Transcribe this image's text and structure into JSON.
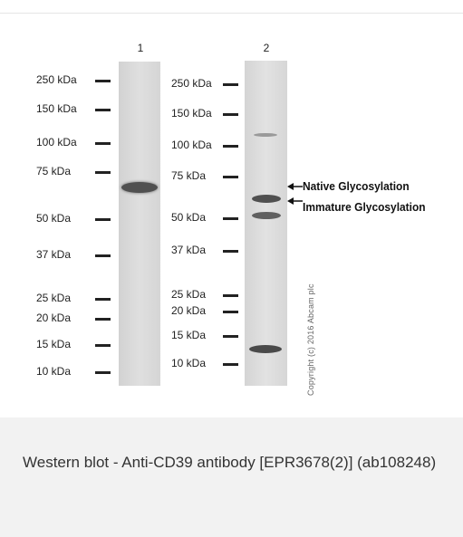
{
  "lanes": {
    "lane1": "1",
    "lane2": "2"
  },
  "markers_left": [
    "250 kDa",
    "150 kDa",
    "100 kDa",
    "75 kDa",
    "50 kDa",
    "37 kDa",
    "25 kDa",
    "20 kDa",
    "15 kDa",
    "10 kDa"
  ],
  "markers_right": [
    "250 kDa",
    "150 kDa",
    "100 kDa",
    "75 kDa",
    "50 kDa",
    "37 kDa",
    "25 kDa",
    "20 kDa",
    "15 kDa",
    "10 kDa"
  ],
  "annotations": {
    "native": "Native Glycosylation",
    "immature": "Immature Glycosylation"
  },
  "copyright": "Copyright (c) 2016 Abcam plc",
  "caption": "Western blot - Anti-CD39 antibody [EPR3678(2)] (ab108248)",
  "colors": {
    "caption_bg": "#f2f2f2",
    "caption_text": "#333333",
    "band": "#4a4a4a"
  }
}
